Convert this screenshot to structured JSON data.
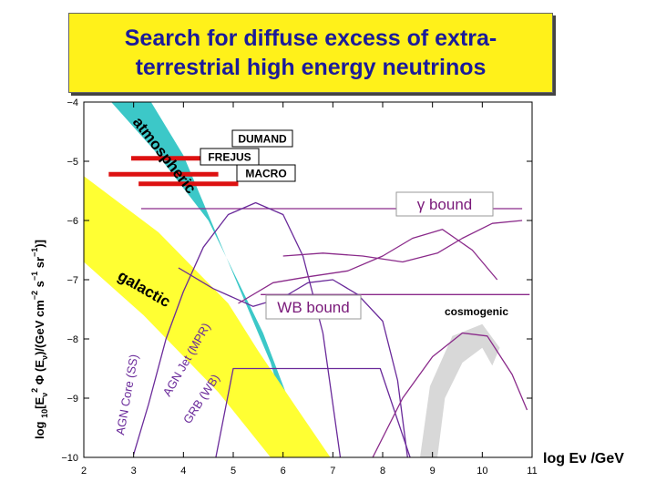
{
  "chart_data": {
    "type": "line",
    "title_lines": [
      "Search for diffuse excess of extra-",
      "terrestrial high energy neutrinos"
    ],
    "xlabel": "log Eν /GeV",
    "ylabel": "log 10[Eν2 Φ (Eν)/(GeV cm−2 s−1 sr−1)]",
    "ylabel_parts": [
      "log ",
      "10",
      "[E",
      "ν",
      "2",
      " Φ (E",
      "ν",
      ")/(GeV cm",
      "−2",
      " s",
      "−1",
      " sr",
      "−1",
      ")]"
    ],
    "xlim": [
      2,
      11
    ],
    "ylim": [
      -10,
      -4
    ],
    "xticks": [
      "2",
      "3",
      "4",
      "5",
      "6",
      "7",
      "8",
      "9",
      "10",
      "11"
    ],
    "yticks": [
      "−4",
      "−5",
      "−6",
      "−7",
      "−8",
      "−9",
      "−10"
    ],
    "bands": [
      {
        "name": "atmospheric",
        "label": "atmospheric",
        "color": "#3cc8c8",
        "upper": [
          [
            2.55,
            -4.0
          ],
          [
            3.4,
            -4.8
          ],
          [
            4.5,
            -6.0
          ],
          [
            5.6,
            -7.9
          ],
          [
            6.55,
            -10.0
          ]
        ],
        "lower": [
          [
            3.35,
            -4.0
          ],
          [
            4.0,
            -4.9
          ],
          [
            4.85,
            -6.6
          ],
          [
            5.75,
            -8.4
          ],
          [
            6.3,
            -10.0
          ]
        ]
      },
      {
        "name": "galactic",
        "label": "galactic",
        "color": "#ffff33",
        "upper": [
          [
            2.0,
            -5.25
          ],
          [
            3.5,
            -6.2
          ],
          [
            4.9,
            -7.4
          ],
          [
            5.5,
            -8.2
          ],
          [
            6.3,
            -9.2
          ],
          [
            6.95,
            -10.0
          ]
        ],
        "lower": [
          [
            2.0,
            -6.7
          ],
          [
            3.2,
            -7.6
          ],
          [
            4.7,
            -8.9
          ],
          [
            5.75,
            -10.0
          ]
        ]
      },
      {
        "name": "cosmogenic-band",
        "label": "",
        "color": "#d8d8d8",
        "upper": [
          [
            8.75,
            -10.0
          ],
          [
            8.95,
            -8.8
          ],
          [
            9.4,
            -7.95
          ],
          [
            10.0,
            -7.75
          ],
          [
            10.35,
            -8.15
          ]
        ],
        "lower": [
          [
            9.1,
            -10.0
          ],
          [
            9.25,
            -9.0
          ],
          [
            9.6,
            -8.4
          ],
          [
            10.0,
            -8.15
          ],
          [
            10.2,
            -8.45
          ]
        ]
      }
    ],
    "limits": [
      {
        "name": "DUMAND",
        "label": "DUMAND",
        "x": [
          2.95,
          4.95
        ],
        "y": -4.95,
        "color": "#dd1111"
      },
      {
        "name": "FREJUS",
        "label": "FREJUS",
        "x": [
          2.5,
          4.7
        ],
        "y": -5.22,
        "color": "#dd1111"
      },
      {
        "name": "MACRO",
        "label": "MACRO",
        "x": [
          3.1,
          5.1
        ],
        "y": -5.38,
        "color": "#dd1111"
      }
    ],
    "series": [
      {
        "name": "gamma-bound",
        "label": "γ bound",
        "color": "#8a2a8a",
        "points": [
          [
            3.15,
            -5.8
          ],
          [
            10.8,
            -5.8
          ]
        ]
      },
      {
        "name": "wb-bound",
        "label": "WB bound",
        "color": "#8a2a8a",
        "points": [
          [
            5.55,
            -7.25
          ],
          [
            10.95,
            -7.25
          ]
        ]
      },
      {
        "name": "agn-core",
        "label": "AGN Core (SS)",
        "color": "#6a2a9a",
        "points": [
          [
            3.0,
            -9.95
          ],
          [
            3.3,
            -9.1
          ],
          [
            3.65,
            -8.0
          ],
          [
            4.0,
            -7.2
          ],
          [
            4.4,
            -6.45
          ],
          [
            4.9,
            -5.9
          ],
          [
            5.45,
            -5.7
          ],
          [
            6.0,
            -5.9
          ],
          [
            6.4,
            -6.6
          ],
          [
            6.8,
            -7.9
          ],
          [
            7.15,
            -10.0
          ]
        ]
      },
      {
        "name": "agn-jet",
        "label": "AGN Jet (MPR)",
        "color": "#6a2a9a",
        "points": [
          [
            3.9,
            -6.8
          ],
          [
            4.6,
            -7.15
          ],
          [
            5.4,
            -7.45
          ],
          [
            6.0,
            -7.3
          ],
          [
            6.5,
            -7.05
          ],
          [
            7.0,
            -7.0
          ],
          [
            7.5,
            -7.25
          ],
          [
            8.0,
            -7.7
          ],
          [
            8.3,
            -8.7
          ],
          [
            8.5,
            -10.0
          ]
        ]
      },
      {
        "name": "grb",
        "label": "GRB (WB)",
        "color": "#6a2a9a",
        "points": [
          [
            4.65,
            -10.0
          ],
          [
            5.0,
            -8.5
          ],
          [
            7.95,
            -8.5
          ],
          [
            8.55,
            -10.0
          ]
        ]
      },
      {
        "name": "topdown-1",
        "label": "",
        "color": "#8a2a8a",
        "points": [
          [
            6.0,
            -6.6
          ],
          [
            6.8,
            -6.55
          ],
          [
            7.6,
            -6.6
          ],
          [
            8.4,
            -6.7
          ],
          [
            9.1,
            -6.55
          ],
          [
            9.6,
            -6.3
          ],
          [
            10.2,
            -6.05
          ],
          [
            10.8,
            -6.0
          ]
        ]
      },
      {
        "name": "topdown-2",
        "label": "",
        "color": "#8a2a8a",
        "points": [
          [
            5.1,
            -7.4
          ],
          [
            5.8,
            -7.05
          ],
          [
            6.5,
            -6.95
          ],
          [
            7.3,
            -6.85
          ],
          [
            8.0,
            -6.6
          ],
          [
            8.6,
            -6.3
          ],
          [
            9.2,
            -6.15
          ],
          [
            9.8,
            -6.5
          ],
          [
            10.3,
            -7.0
          ]
        ]
      },
      {
        "name": "topdown-3",
        "label": "",
        "color": "#8a2a8a",
        "points": [
          [
            7.8,
            -10.0
          ],
          [
            8.4,
            -9.0
          ],
          [
            9.0,
            -8.3
          ],
          [
            9.6,
            -7.9
          ],
          [
            10.1,
            -7.95
          ],
          [
            10.6,
            -8.6
          ],
          [
            10.9,
            -9.2
          ]
        ]
      }
    ],
    "annotations": {
      "cosmogenic": "cosmogenic"
    },
    "colors": {
      "title_bg": "#fff11a",
      "title_text": "#1b1b9a"
    }
  }
}
